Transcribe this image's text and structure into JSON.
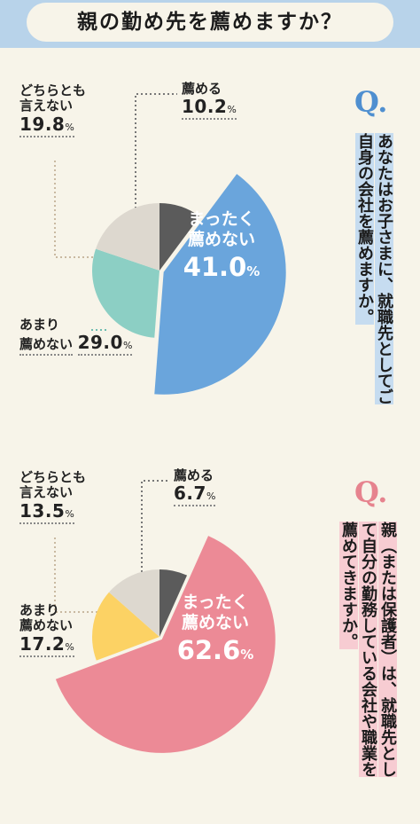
{
  "header": {
    "title": "親の勤め先を薦めますか？"
  },
  "colors": {
    "header_bg": "#b8d3ea",
    "q1_accent": "#4f8fd0",
    "q2_accent": "#e6838e",
    "highlight_blue": "#c6dcf0",
    "highlight_pink": "#f7ccd2"
  },
  "question1": {
    "mark": "Q.",
    "text": "あなたはお子さまに、就職先としてご自身の会社を薦めますか。"
  },
  "question2": {
    "mark": "Q.",
    "text": "親（または保護者）は、就職先として自分の勤務している会社や職業を薦めてきますか。"
  },
  "chart_data": [
    {
      "type": "pie",
      "slices": [
        {
          "label": "薦める",
          "value": 10.2,
          "color": "#5b5b5b"
        },
        {
          "label": "まったく薦めない",
          "value": 41.0,
          "color": "#6aa5dc"
        },
        {
          "label": "あまり薦めない",
          "value": 29.0,
          "color": "#8ccfc4"
        },
        {
          "label": "どちらとも言えない",
          "value": 19.8,
          "color": "#ddd8cf"
        }
      ],
      "unit": "%"
    },
    {
      "type": "pie",
      "slices": [
        {
          "label": "薦める",
          "value": 6.7,
          "color": "#5b5b5b"
        },
        {
          "label": "まったく薦めない",
          "value": 62.6,
          "color": "#ec8a96"
        },
        {
          "label": "あまり薦めない",
          "value": 17.2,
          "color": "#fcd264"
        },
        {
          "label": "どちらとも言えない",
          "value": 13.5,
          "color": "#ddd8cf"
        }
      ],
      "unit": "%"
    }
  ],
  "chart1_labels": {
    "susumeru": {
      "text": "薦める",
      "value": "10.2",
      "pct": "%"
    },
    "dochira": {
      "line1": "どちらとも",
      "line2": "言えない",
      "value": "19.8",
      "pct": "%"
    },
    "amari": {
      "line1": "あまり",
      "line2": "薦めない",
      "value": "29.0",
      "pct": "%"
    },
    "mattaku": {
      "line1": "まったく",
      "line2": "薦めない",
      "value": "41.0",
      "pct": "%"
    }
  },
  "chart2_labels": {
    "susumeru": {
      "text": "薦める",
      "value": "6.7",
      "pct": "%"
    },
    "dochira": {
      "line1": "どちらとも",
      "line2": "言えない",
      "value": "13.5",
      "pct": "%"
    },
    "amari": {
      "line1": "あまり",
      "line2": "薦めない",
      "value": "17.2",
      "pct": "%"
    },
    "mattaku": {
      "line1": "まったく",
      "line2": "薦めない",
      "value": "62.6",
      "pct": "%"
    }
  }
}
